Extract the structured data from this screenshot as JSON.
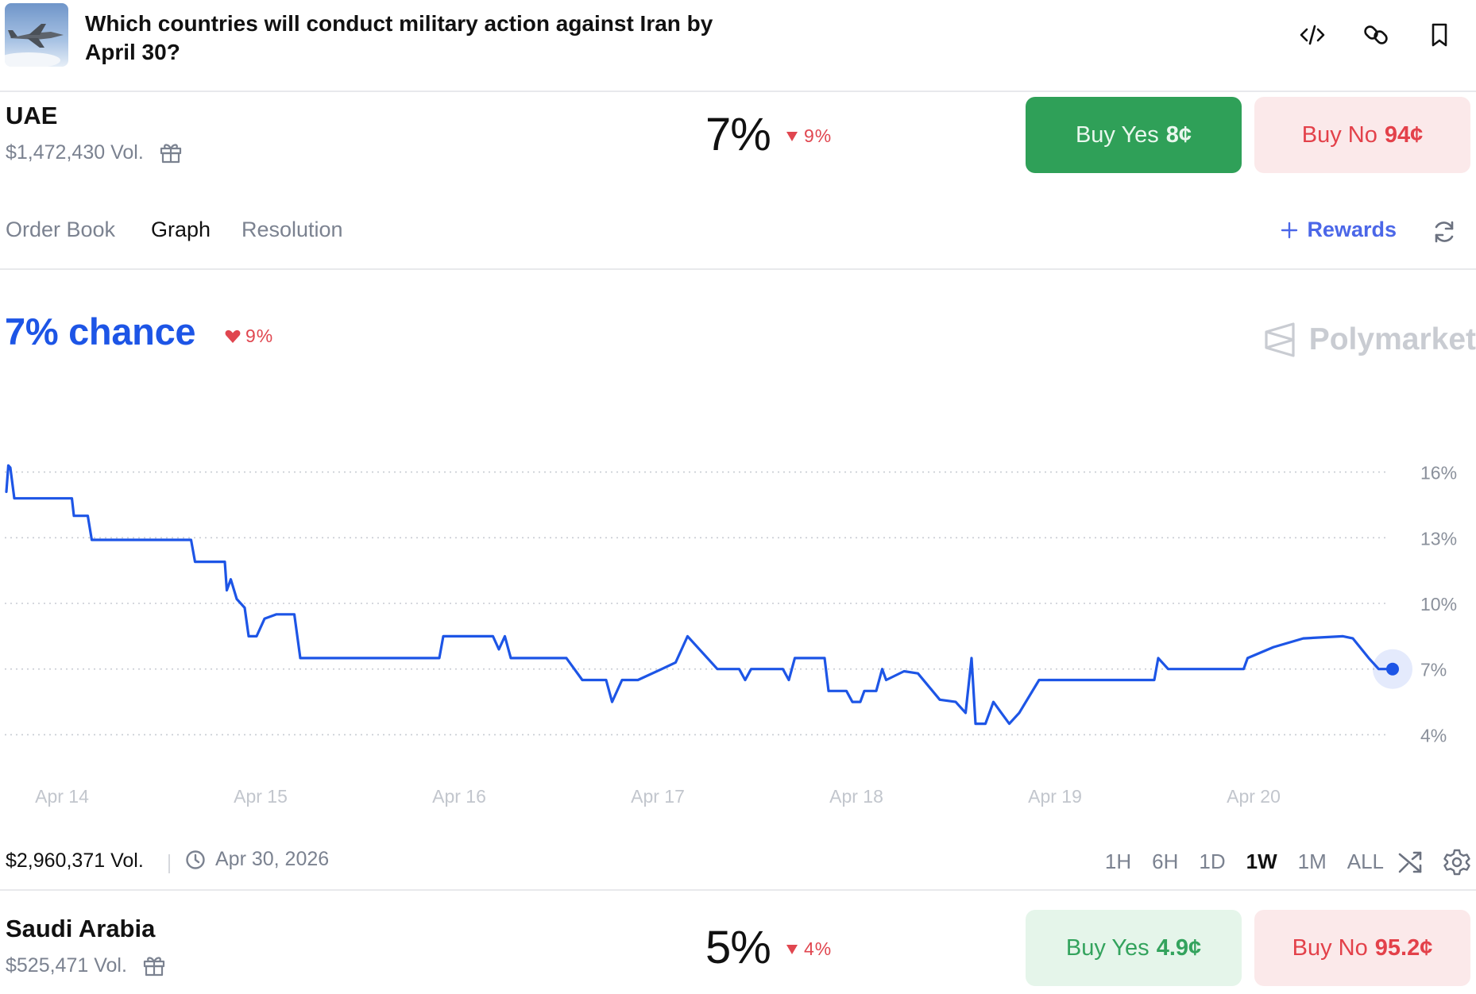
{
  "header": {
    "title": "Which countries will conduct military action against Iran by April 30?",
    "actions": [
      "embed-icon",
      "link-icon",
      "bookmark-icon"
    ]
  },
  "outcomes": [
    {
      "name": "UAE",
      "volume": "$1,472,430 Vol.",
      "percent": "7%",
      "change": "9%",
      "buy_yes_label": "Buy Yes",
      "buy_yes_price": "8¢",
      "buy_no_label": "Buy No",
      "buy_no_price": "94¢"
    },
    {
      "name": "Saudi Arabia",
      "volume": "$525,471 Vol.",
      "percent": "5%",
      "change": "4%",
      "buy_yes_label": "Buy Yes",
      "buy_yes_price": "4.9¢",
      "buy_no_label": "Buy No",
      "buy_no_price": "95.2¢"
    }
  ],
  "tabs": [
    "Order Book",
    "Graph",
    "Resolution"
  ],
  "active_tab": "Graph",
  "rewards_label": "Rewards",
  "chance": {
    "label": "7% chance",
    "change": "9%"
  },
  "brand": "Polymarket",
  "footer": {
    "volume": "$2,960,371 Vol.",
    "end_date": "Apr 30, 2026",
    "ranges": [
      "1H",
      "6H",
      "1D",
      "1W",
      "1M",
      "ALL"
    ],
    "active_range": "1W"
  },
  "colors": {
    "line": "#1d55e6",
    "up": "#2fa058",
    "down": "#e0464f"
  },
  "chart_data": {
    "type": "line",
    "x_tick_labels": [
      "Apr 14",
      "Apr 15",
      "Apr 16",
      "Apr 17",
      "Apr 18",
      "Apr 19",
      "Apr 20"
    ],
    "y_tick_labels": [
      "16%",
      "13%",
      "10%",
      "7%",
      "4%"
    ],
    "y_ticks": [
      16,
      13,
      10,
      7,
      4
    ],
    "ylim": [
      3,
      17
    ],
    "xlim": [
      -0.3,
      7.0
    ],
    "grid": true,
    "series": [
      {
        "values": [
          [
            -0.28,
            15.1
          ],
          [
            -0.27,
            16.3
          ],
          [
            -0.26,
            16.2
          ],
          [
            -0.24,
            14.8
          ],
          [
            0.05,
            14.8
          ],
          [
            0.06,
            14.0
          ],
          [
            0.13,
            14.0
          ],
          [
            0.15,
            12.9
          ],
          [
            0.65,
            12.9
          ],
          [
            0.67,
            11.9
          ],
          [
            0.82,
            11.9
          ],
          [
            0.83,
            10.6
          ],
          [
            0.85,
            11.1
          ],
          [
            0.88,
            10.2
          ],
          [
            0.92,
            9.8
          ],
          [
            0.94,
            8.5
          ],
          [
            0.98,
            8.5
          ],
          [
            1.02,
            9.3
          ],
          [
            1.08,
            9.5
          ],
          [
            1.17,
            9.5
          ],
          [
            1.2,
            7.5
          ],
          [
            1.9,
            7.5
          ],
          [
            1.92,
            8.5
          ],
          [
            2.17,
            8.5
          ],
          [
            2.2,
            7.9
          ],
          [
            2.23,
            8.5
          ],
          [
            2.26,
            7.5
          ],
          [
            2.54,
            7.5
          ],
          [
            2.58,
            7.0
          ],
          [
            2.62,
            6.5
          ],
          [
            2.74,
            6.5
          ],
          [
            2.77,
            5.5
          ],
          [
            2.82,
            6.5
          ],
          [
            2.9,
            6.5
          ],
          [
            3.02,
            7.0
          ],
          [
            3.09,
            7.3
          ],
          [
            3.15,
            8.5
          ],
          [
            3.3,
            7.0
          ],
          [
            3.41,
            7.0
          ],
          [
            3.44,
            6.5
          ],
          [
            3.47,
            7.0
          ],
          [
            3.63,
            7.0
          ],
          [
            3.66,
            6.5
          ],
          [
            3.69,
            7.5
          ],
          [
            3.84,
            7.5
          ],
          [
            3.86,
            6.0
          ],
          [
            3.95,
            6.0
          ],
          [
            3.98,
            5.5
          ],
          [
            4.02,
            5.5
          ],
          [
            4.04,
            6.0
          ],
          [
            4.1,
            6.0
          ],
          [
            4.13,
            7.0
          ],
          [
            4.15,
            6.5
          ],
          [
            4.24,
            6.9
          ],
          [
            4.31,
            6.8
          ],
          [
            4.42,
            5.6
          ],
          [
            4.5,
            5.5
          ],
          [
            4.55,
            5.0
          ],
          [
            4.58,
            7.5
          ],
          [
            4.6,
            4.5
          ],
          [
            4.65,
            4.5
          ],
          [
            4.69,
            5.5
          ],
          [
            4.73,
            5.0
          ],
          [
            4.77,
            4.5
          ],
          [
            4.82,
            5.0
          ],
          [
            4.92,
            6.5
          ],
          [
            5.5,
            6.5
          ],
          [
            5.52,
            7.5
          ],
          [
            5.57,
            7.0
          ],
          [
            5.95,
            7.0
          ],
          [
            5.97,
            7.5
          ],
          [
            6.1,
            8.0
          ],
          [
            6.25,
            8.4
          ],
          [
            6.45,
            8.5
          ],
          [
            6.5,
            8.4
          ],
          [
            6.58,
            7.5
          ],
          [
            6.63,
            7.0
          ],
          [
            6.7,
            7.0
          ]
        ]
      }
    ]
  }
}
